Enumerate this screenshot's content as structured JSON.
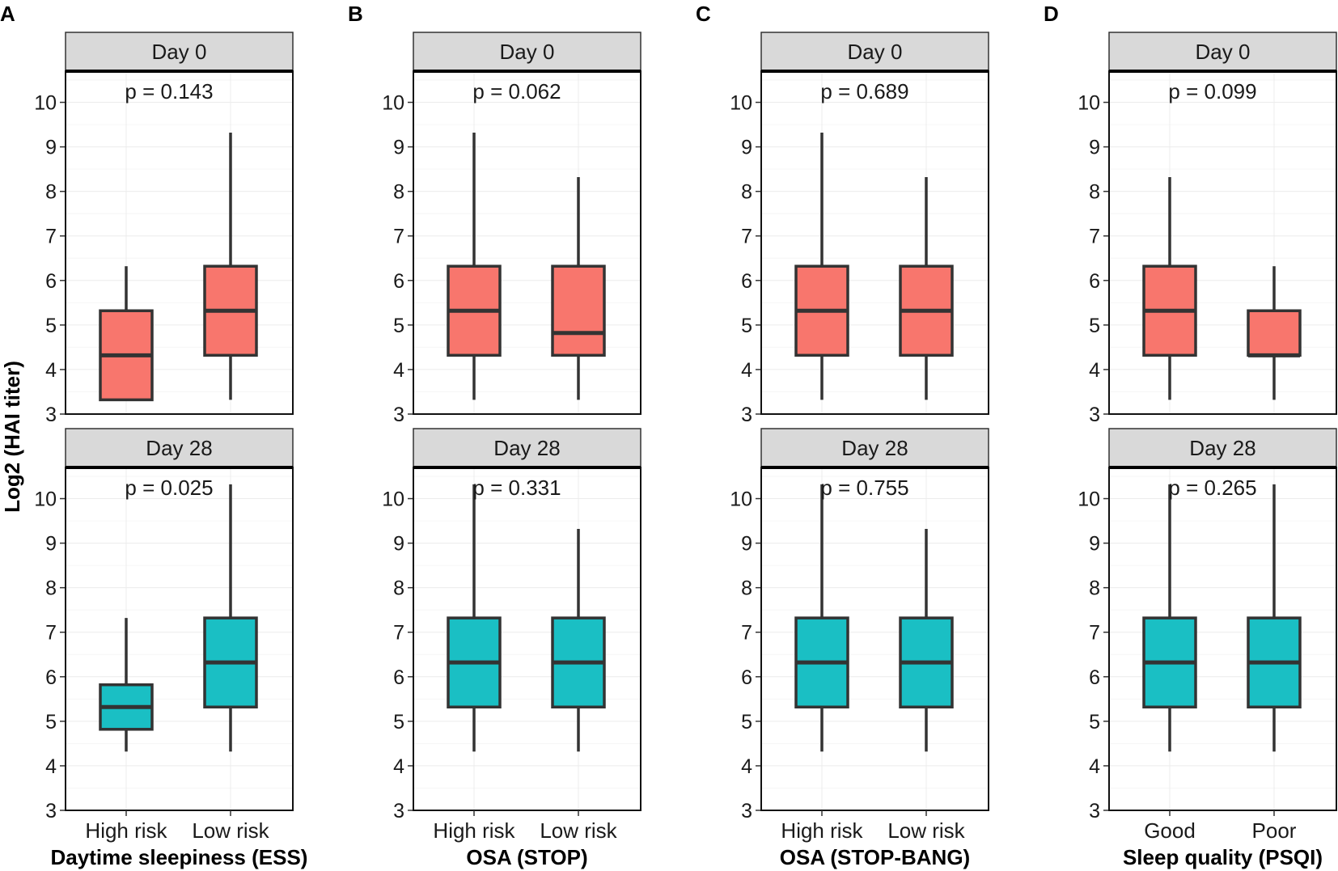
{
  "chart_data": {
    "type": "box",
    "ylabel": "Log2 (HAI titer)",
    "ylim": [
      3,
      10.7
    ],
    "yticks": [
      "3",
      "4",
      "5",
      "6",
      "7",
      "8",
      "9",
      "10"
    ],
    "colors": {
      "day0_fill": "#F8766D",
      "day28_fill": "#1ABFC4",
      "box_stroke": "#333333",
      "strip_fill": "#D9D9D9"
    },
    "rows": [
      "Day 0",
      "Day 28"
    ],
    "panels": [
      {
        "letter": "A",
        "xlabel": "Daytime sleepiness (ESS)",
        "categories": [
          "High risk",
          "Low risk"
        ],
        "day0": {
          "p": "p = 0.143",
          "boxes": [
            {
              "min": 3.32,
              "q1": 3.32,
              "median": 4.32,
              "q3": 5.32,
              "max": 6.32
            },
            {
              "min": 3.32,
              "q1": 4.32,
              "median": 5.32,
              "q3": 6.32,
              "max": 9.32
            }
          ]
        },
        "day28": {
          "p": "p = 0.025",
          "boxes": [
            {
              "min": 4.32,
              "q1": 4.82,
              "median": 5.32,
              "q3": 5.82,
              "max": 7.32
            },
            {
              "min": 4.32,
              "q1": 5.32,
              "median": 6.32,
              "q3": 7.32,
              "max": 10.32
            }
          ]
        }
      },
      {
        "letter": "B",
        "xlabel": "OSA (STOP)",
        "categories": [
          "High risk",
          "Low risk"
        ],
        "day0": {
          "p": "p = 0.062",
          "boxes": [
            {
              "min": 3.32,
              "q1": 4.32,
              "median": 5.32,
              "q3": 6.32,
              "max": 9.32
            },
            {
              "min": 3.32,
              "q1": 4.32,
              "median": 4.82,
              "q3": 6.32,
              "max": 8.32
            }
          ]
        },
        "day28": {
          "p": "p = 0.331",
          "boxes": [
            {
              "min": 4.32,
              "q1": 5.32,
              "median": 6.32,
              "q3": 7.32,
              "max": 10.32
            },
            {
              "min": 4.32,
              "q1": 5.32,
              "median": 6.32,
              "q3": 7.32,
              "max": 9.32
            }
          ]
        }
      },
      {
        "letter": "C",
        "xlabel": "OSA (STOP-BANG)",
        "categories": [
          "High risk",
          "Low risk"
        ],
        "day0": {
          "p": "p = 0.689",
          "boxes": [
            {
              "min": 3.32,
              "q1": 4.32,
              "median": 5.32,
              "q3": 6.32,
              "max": 9.32
            },
            {
              "min": 3.32,
              "q1": 4.32,
              "median": 5.32,
              "q3": 6.32,
              "max": 8.32
            }
          ]
        },
        "day28": {
          "p": "p = 0.755",
          "boxes": [
            {
              "min": 4.32,
              "q1": 5.32,
              "median": 6.32,
              "q3": 7.32,
              "max": 10.32
            },
            {
              "min": 4.32,
              "q1": 5.32,
              "median": 6.32,
              "q3": 7.32,
              "max": 9.32
            }
          ]
        }
      },
      {
        "letter": "D",
        "xlabel": "Sleep quality (PSQI)",
        "categories": [
          "Good",
          "Poor"
        ],
        "day0": {
          "p": "p = 0.099",
          "boxes": [
            {
              "min": 3.32,
              "q1": 4.32,
              "median": 5.32,
              "q3": 6.32,
              "max": 8.32
            },
            {
              "min": 3.32,
              "q1": 4.32,
              "median": 4.32,
              "q3": 5.32,
              "max": 6.32
            }
          ]
        },
        "day28": {
          "p": "p = 0.265",
          "boxes": [
            {
              "min": 4.32,
              "q1": 5.32,
              "median": 6.32,
              "q3": 7.32,
              "max": 10.32
            },
            {
              "min": 4.32,
              "q1": 5.32,
              "median": 6.32,
              "q3": 7.32,
              "max": 10.32
            }
          ]
        }
      }
    ]
  }
}
